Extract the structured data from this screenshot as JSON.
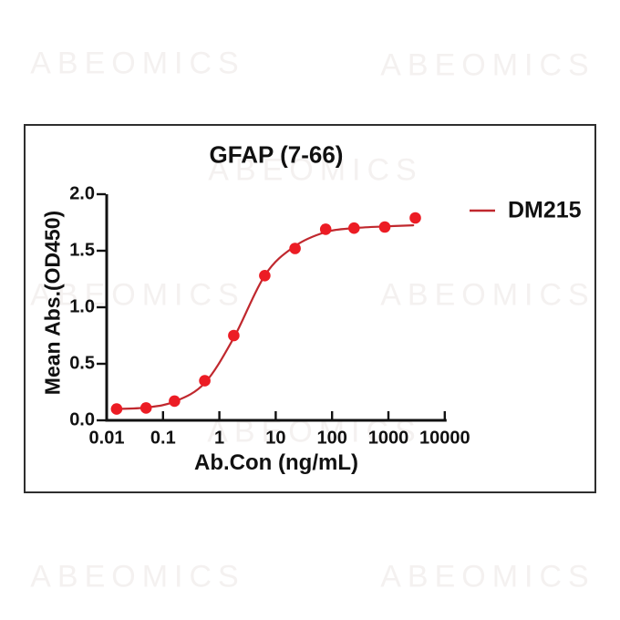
{
  "watermark": {
    "text": "ABEOMICS"
  },
  "chart": {
    "title": "GFAP (7-66)",
    "x_axis_label": "Ab.Con (ng/mL)",
    "y_axis_label": "Mean Abs.(OD450)",
    "legend_label": "DM215"
  },
  "colors": {
    "marker": "#ec1c24",
    "curve": "#c0282e",
    "axis": "#111111",
    "watermark": "#f4f1f0"
  },
  "chart_data": {
    "type": "scatter",
    "title": "GFAP (7-66)",
    "xlabel": "Ab.Con (ng/mL)",
    "ylabel": "Mean Abs.(OD450)",
    "x_scale": "log10",
    "xlim": [
      0.01,
      10000
    ],
    "ylim": [
      0.0,
      2.0
    ],
    "x_ticks": [
      "0.01",
      "0.1",
      "1",
      "10",
      "100",
      "1000",
      "10000"
    ],
    "y_ticks": [
      "0.0",
      "0.5",
      "1.0",
      "1.5",
      "2.0"
    ],
    "grid": false,
    "legend_position": "upper-right",
    "series": [
      {
        "name": "DM215",
        "marker_color": "#ec1c24",
        "line_color": "#c0282e",
        "x": [
          0.015,
          0.05,
          0.16,
          0.55,
          1.8,
          6.4,
          22,
          77,
          245,
          860,
          3000
        ],
        "y": [
          0.1,
          0.11,
          0.17,
          0.35,
          0.75,
          1.28,
          1.52,
          1.69,
          1.7,
          1.71,
          1.79
        ],
        "fit_curve_log10x_y": [
          [
            -1.84,
            0.1
          ],
          [
            -1.3,
            0.113
          ],
          [
            -0.8,
            0.165
          ],
          [
            -0.26,
            0.33
          ],
          [
            0.255,
            0.73
          ],
          [
            0.81,
            1.285
          ],
          [
            1.34,
            1.54
          ],
          [
            1.89,
            1.665
          ],
          [
            2.39,
            1.7
          ],
          [
            2.93,
            1.715
          ],
          [
            3.44,
            1.725
          ]
        ]
      }
    ]
  }
}
